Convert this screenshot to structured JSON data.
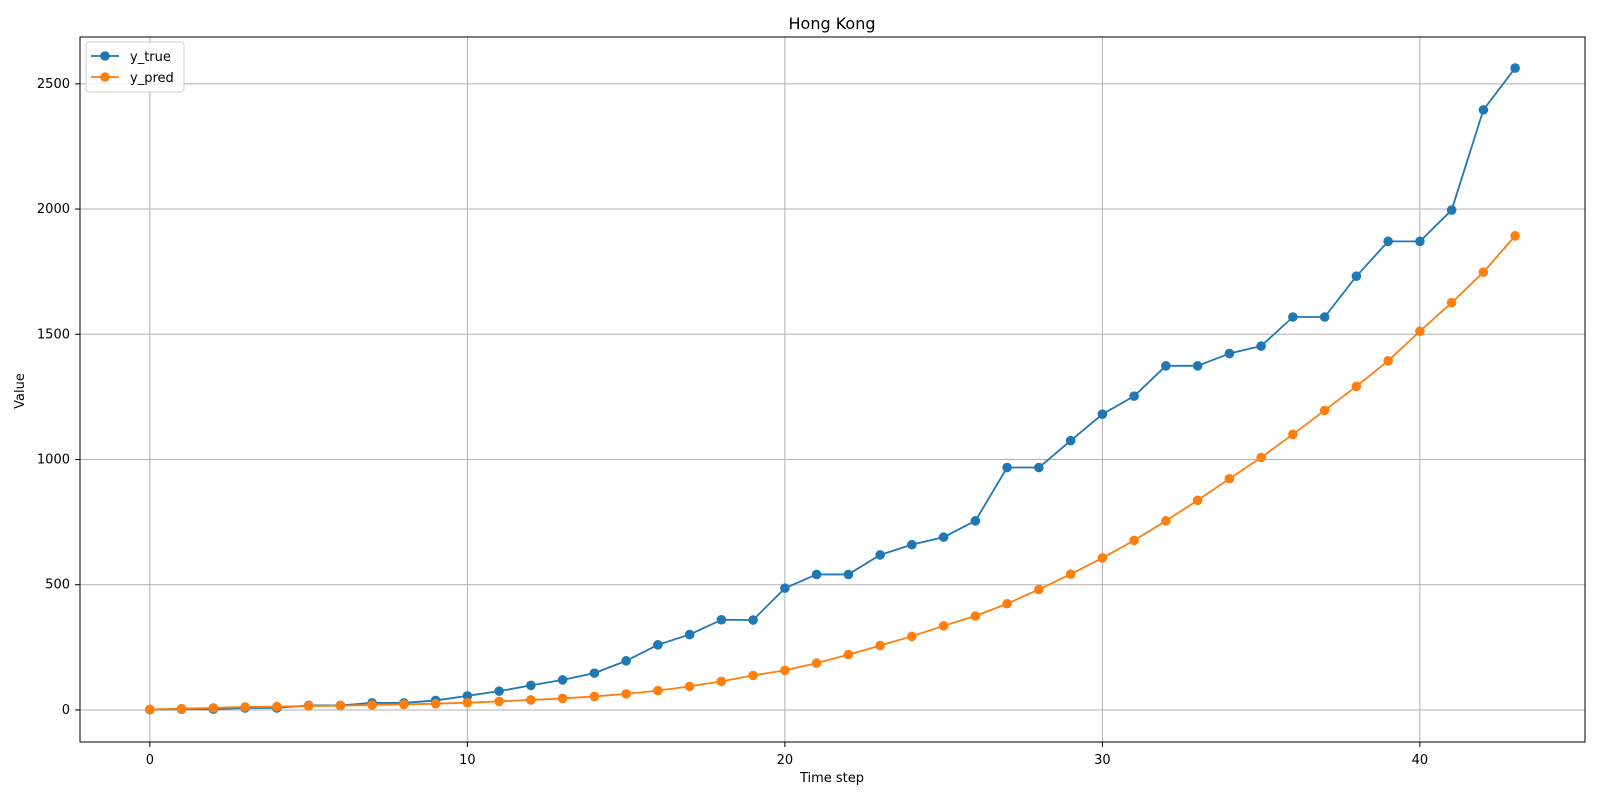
{
  "chart_data": {
    "type": "line",
    "title": "Hong Kong",
    "xlabel": "Time step",
    "ylabel": "Value",
    "xlim": [
      -2.2,
      45.2
    ],
    "ylim": [
      -128,
      2687
    ],
    "xticks": [
      0,
      10,
      20,
      30,
      40
    ],
    "yticks": [
      0,
      500,
      1000,
      1500,
      2000,
      2500
    ],
    "grid": true,
    "legend": {
      "position": "top-left"
    },
    "x": [
      0,
      1,
      2,
      3,
      4,
      5,
      6,
      7,
      8,
      9,
      10,
      11,
      12,
      13,
      14,
      15,
      16,
      17,
      18,
      19,
      20,
      21,
      22,
      23,
      24,
      25,
      26,
      27,
      28,
      29,
      30,
      31,
      32,
      33,
      34,
      35,
      36,
      37,
      38,
      39,
      40,
      41,
      42,
      43
    ],
    "series": [
      {
        "name": "y_true",
        "color": "#1f77b4",
        "values": [
          1,
          3,
          3,
          8,
          8,
          18,
          18,
          28,
          28,
          38,
          56,
          75,
          98,
          120,
          147,
          196,
          260,
          301,
          360,
          359,
          486,
          541,
          541,
          619,
          660,
          690,
          755,
          968,
          968,
          1075,
          1181,
          1253,
          1374,
          1374,
          1423,
          1453,
          1569,
          1569,
          1732,
          1871,
          1871,
          1996,
          2396,
          2563
        ]
      },
      {
        "name": "y_pred",
        "color": "#ff7f0e",
        "values": [
          2,
          5,
          8,
          12,
          13,
          16,
          17,
          20,
          22,
          25,
          29,
          34,
          40,
          46,
          54,
          64,
          77,
          94,
          114,
          138,
          158,
          187,
          221,
          257,
          294,
          336,
          375,
          424,
          481,
          542,
          607,
          677,
          755,
          837,
          923,
          1008,
          1100,
          1196,
          1292,
          1394,
          1512,
          1626,
          1748,
          1893
        ]
      }
    ]
  }
}
